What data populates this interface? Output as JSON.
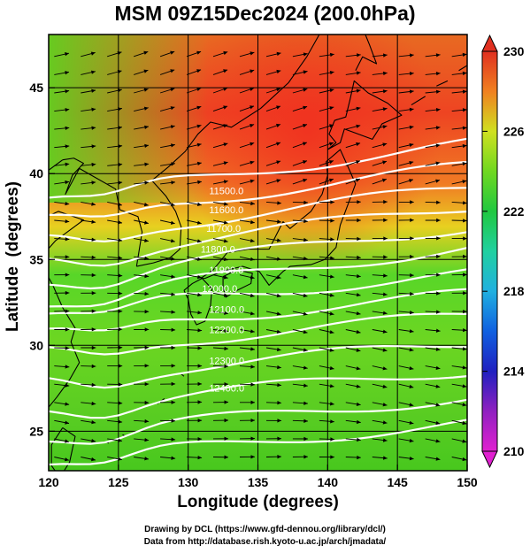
{
  "title": "MSM 09Z15Dec2024 (200.0hPa)",
  "x_axis": {
    "label": "Longitude (degrees)",
    "ticks": [
      "120",
      "125",
      "130",
      "135",
      "140",
      "145",
      "150"
    ]
  },
  "y_axis": {
    "label": "Latitude  (degrees)",
    "ticks": [
      "25",
      "30",
      "35",
      "40",
      "45"
    ]
  },
  "colorbar": {
    "ticks": [
      "210",
      "214",
      "218",
      "222",
      "226",
      "230"
    ]
  },
  "contour_labels": [
    {
      "text": "11500.0",
      "lon": 131.5,
      "lat": 38.8
    },
    {
      "text": "11600.0",
      "lon": 131.5,
      "lat": 37.7
    },
    {
      "text": "11700.0",
      "lon": 131.3,
      "lat": 36.6
    },
    {
      "text": "11800.0",
      "lon": 130.9,
      "lat": 35.4
    },
    {
      "text": "11900.0",
      "lon": 131.5,
      "lat": 34.2
    },
    {
      "text": "12000.0",
      "lon": 131.0,
      "lat": 33.1
    },
    {
      "text": "12100.0",
      "lon": 131.5,
      "lat": 31.9
    },
    {
      "text": "12200.0",
      "lon": 131.5,
      "lat": 30.7
    },
    {
      "text": "12300.0",
      "lon": 131.5,
      "lat": 28.9
    },
    {
      "text": "12400.0",
      "lon": 131.5,
      "lat": 27.3
    }
  ],
  "credits": {
    "line1": "Drawing by DCL (https://www.gfd-dennou.org/library/dcl/)",
    "line2": "Data from http://database.rish.kyoto-u.ac.jp/arch/jmadata/"
  },
  "colors": {
    "scale": [
      "#e020d0",
      "#9020c0",
      "#2020c0",
      "#1060e0",
      "#20b0e0",
      "#20d0a0",
      "#20c840",
      "#70d820",
      "#d0e020",
      "#f0c020",
      "#f08020",
      "#e03020"
    ],
    "contour": "#ffffff",
    "vector": "#000000"
  }
}
